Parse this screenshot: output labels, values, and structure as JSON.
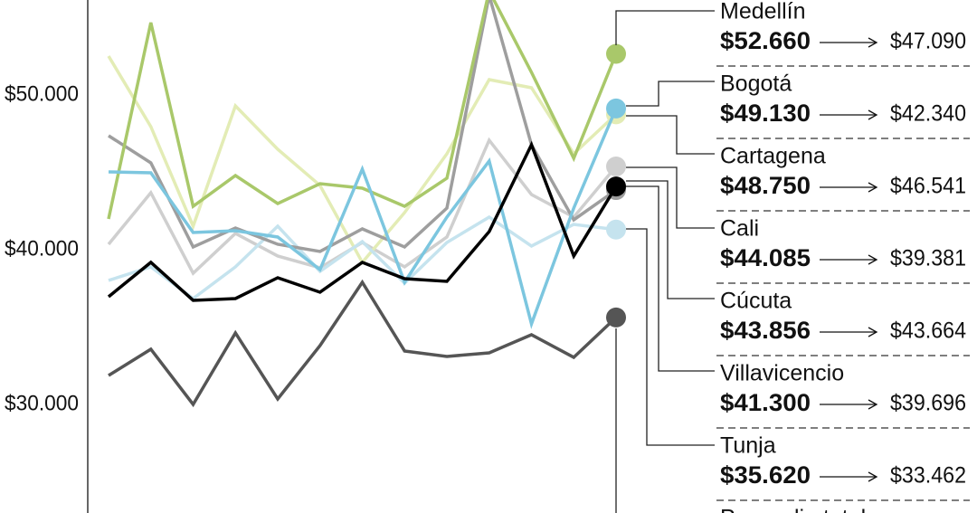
{
  "chart_data": {
    "type": "line",
    "categories": [
      null,
      null,
      null,
      null,
      null,
      null,
      null,
      null,
      null,
      null,
      null,
      null,
      null
    ],
    "ylim": [
      22980,
      56140
    ],
    "yticks": [
      {
        "value": 30000,
        "label": "$30.000"
      },
      {
        "value": 40000,
        "label": "$40.000"
      },
      {
        "value": 50000,
        "label": "$50.000"
      }
    ],
    "grid": false,
    "series": [
      {
        "name": "Medellín",
        "color": "#a9c86a",
        "values": [
          41988,
          54678,
          42807,
          44795,
          42982,
          44269,
          43977,
          42807,
          44620,
          56725,
          51462,
          45906,
          52660
        ],
        "current_label": "$52.660",
        "previous_label": "$47.090"
      },
      {
        "name": "Bogotá",
        "color": "#7cc6df",
        "values": [
          45029,
          44971,
          41111,
          41228,
          40819,
          38713,
          45205,
          37895,
          42106,
          45731,
          35205,
          42690,
          49130
        ],
        "current_label": "$49.130",
        "previous_label": "$42.340"
      },
      {
        "name": "Cartagena",
        "color": "#e3ecb5",
        "values": [
          52515,
          47953,
          41520,
          49298,
          46491,
          44152,
          39181,
          42398,
          46199,
          50994,
          50468,
          46199,
          48750
        ],
        "current_label": "$48.750",
        "previous_label": "$46.541"
      },
      {
        "name": "Cali",
        "color": "#000000",
        "values": [
          36959,
          39181,
          36725,
          36842,
          38187,
          37251,
          39181,
          38129,
          37953,
          41170,
          46784,
          39591,
          44085
        ],
        "current_label": "$44.085",
        "previous_label": "$39.381"
      },
      {
        "name": "Cúcuta",
        "color": "#9e9e9e",
        "values": [
          47369,
          45614,
          40176,
          41404,
          40351,
          39883,
          41345,
          40176,
          42690,
          56433,
          46784,
          41930,
          43856
        ],
        "current_label": "$43.856",
        "previous_label": "$43.664"
      },
      {
        "name": "Villavicencio",
        "color": "#c5e3ee",
        "values": [
          38012,
          38889,
          36842,
          38889,
          41520,
          38597,
          40526,
          37836,
          40468,
          42106,
          40234,
          41637,
          41300
        ],
        "current_label": "$41.300",
        "previous_label": "$39.696"
      },
      {
        "name": "Tunja",
        "color": "#555555",
        "values": [
          31871,
          33567,
          30000,
          34620,
          30351,
          33801,
          37895,
          33450,
          33099,
          33333,
          34503,
          33041,
          35620
        ],
        "current_label": "$35.620",
        "previous_label": "$33.462"
      },
      {
        "name": "Promedio total",
        "color": "#cfcfcf",
        "values": [
          40351,
          43684,
          38480,
          41053,
          39591,
          38831,
          40468,
          38889,
          40819,
          47076,
          43567,
          42106,
          45380
        ]
      }
    ]
  }
}
